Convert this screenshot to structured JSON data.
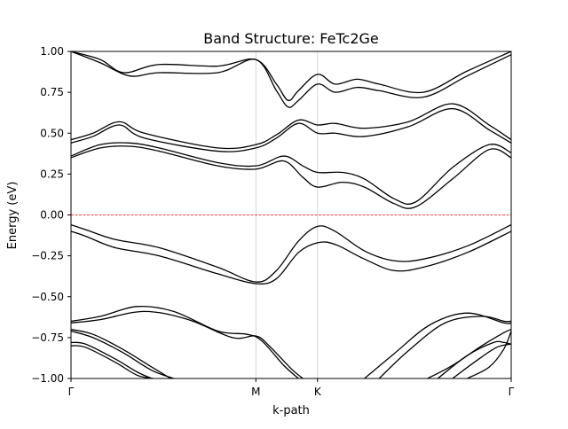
{
  "chart_data": {
    "type": "line",
    "title": "Band Structure: FeTc2Ge",
    "xlabel": "k-path",
    "ylabel": "Energy (eV)",
    "xlim": [
      0,
      3.0
    ],
    "ylim": [
      -1.0,
      1.0
    ],
    "yticks": [
      -1.0,
      -0.75,
      -0.5,
      -0.25,
      0.0,
      0.25,
      0.5,
      0.75,
      1.0
    ],
    "ytick_labels": [
      "−1.00",
      "−0.75",
      "−0.50",
      "−0.25",
      "0.00",
      "0.25",
      "0.50",
      "0.75",
      "1.00"
    ],
    "kpoints": [
      {
        "label": "Γ",
        "x": 0.0
      },
      {
        "label": "M",
        "x": 1.26
      },
      {
        "label": "K",
        "x": 1.68
      },
      {
        "label": "Γ",
        "x": 3.0
      }
    ],
    "fermi_level": 0.0,
    "colors": {
      "bands": "#000000",
      "fermi": "#ff0000",
      "vlines": "#cccccc"
    },
    "series": [
      {
        "x": [
          0,
          0.2,
          0.36,
          0.6,
          1.0,
          1.26,
          1.4,
          1.48,
          1.55,
          1.68,
          1.8,
          1.95,
          2.1,
          2.4,
          2.7,
          3.0
        ],
        "values": [
          1.0,
          0.95,
          0.87,
          0.92,
          0.91,
          0.95,
          0.8,
          0.7,
          0.76,
          0.86,
          0.8,
          0.83,
          0.8,
          0.75,
          0.88,
          1.0
        ]
      },
      {
        "x": [
          0,
          0.2,
          0.4,
          0.6,
          1.0,
          1.26,
          1.4,
          1.48,
          1.55,
          1.68,
          1.8,
          1.95,
          2.1,
          2.4,
          2.7,
          3.0
        ],
        "values": [
          1.0,
          0.93,
          0.85,
          0.87,
          0.87,
          0.95,
          0.76,
          0.66,
          0.7,
          0.8,
          0.75,
          0.78,
          0.76,
          0.72,
          0.85,
          0.98
        ]
      },
      {
        "x": [
          0,
          0.15,
          0.33,
          0.5,
          1.0,
          1.26,
          1.4,
          1.55,
          1.68,
          1.8,
          2.0,
          2.3,
          2.6,
          2.85,
          3.0
        ],
        "values": [
          0.46,
          0.5,
          0.57,
          0.5,
          0.41,
          0.43,
          0.49,
          0.58,
          0.55,
          0.56,
          0.53,
          0.57,
          0.68,
          0.55,
          0.46
        ]
      },
      {
        "x": [
          0,
          0.15,
          0.33,
          0.5,
          1.0,
          1.26,
          1.4,
          1.55,
          1.68,
          1.8,
          2.0,
          2.3,
          2.6,
          2.85,
          3.0
        ],
        "values": [
          0.44,
          0.48,
          0.55,
          0.47,
          0.39,
          0.41,
          0.47,
          0.56,
          0.5,
          0.5,
          0.48,
          0.54,
          0.65,
          0.52,
          0.44
        ]
      },
      {
        "x": [
          0,
          0.2,
          0.4,
          0.6,
          1.0,
          1.26,
          1.45,
          1.58,
          1.68,
          1.85,
          2.0,
          2.2,
          2.35,
          2.6,
          2.85,
          3.0
        ],
        "values": [
          0.36,
          0.43,
          0.44,
          0.41,
          0.32,
          0.3,
          0.36,
          0.3,
          0.26,
          0.26,
          0.22,
          0.1,
          0.08,
          0.29,
          0.43,
          0.38
        ]
      },
      {
        "x": [
          0,
          0.2,
          0.4,
          0.6,
          1.0,
          1.26,
          1.45,
          1.58,
          1.68,
          1.85,
          2.0,
          2.2,
          2.35,
          2.6,
          2.85,
          3.0
        ],
        "values": [
          0.35,
          0.41,
          0.42,
          0.39,
          0.3,
          0.28,
          0.33,
          0.23,
          0.17,
          0.2,
          0.17,
          0.07,
          0.05,
          0.22,
          0.4,
          0.35
        ]
      },
      {
        "x": [
          0,
          0.1,
          0.3,
          0.6,
          1.0,
          1.26,
          1.4,
          1.55,
          1.68,
          1.8,
          2.0,
          2.2,
          2.4,
          2.7,
          3.0
        ],
        "values": [
          -0.06,
          -0.09,
          -0.15,
          -0.2,
          -0.32,
          -0.41,
          -0.34,
          -0.16,
          -0.07,
          -0.1,
          -0.22,
          -0.28,
          -0.27,
          -0.19,
          -0.06
        ]
      },
      {
        "x": [
          0,
          0.1,
          0.3,
          0.6,
          1.0,
          1.26,
          1.4,
          1.55,
          1.68,
          1.8,
          2.0,
          2.2,
          2.4,
          2.7,
          3.0
        ],
        "values": [
          -0.1,
          -0.13,
          -0.2,
          -0.25,
          -0.36,
          -0.42,
          -0.39,
          -0.23,
          -0.17,
          -0.18,
          -0.27,
          -0.34,
          -0.32,
          -0.23,
          -0.1
        ]
      },
      {
        "x": [
          0,
          0.2,
          0.45,
          0.7,
          1.0,
          1.2,
          1.3,
          1.45,
          1.55
        ],
        "values": [
          -0.65,
          -0.62,
          -0.56,
          -0.59,
          -0.71,
          -0.73,
          -0.77,
          -0.92,
          -1.0
        ]
      },
      {
        "x": [
          0,
          0.2,
          0.5,
          0.8,
          1.1,
          1.26,
          1.35,
          1.5,
          1.58
        ],
        "values": [
          -0.66,
          -0.64,
          -0.59,
          -0.64,
          -0.75,
          -0.74,
          -0.8,
          -0.94,
          -1.0
        ]
      },
      {
        "x": [
          0,
          0.15,
          0.35,
          0.55,
          0.68
        ],
        "values": [
          -0.7,
          -0.73,
          -0.82,
          -0.93,
          -1.0
        ]
      },
      {
        "x": [
          0,
          0.15,
          0.35,
          0.55,
          0.7
        ],
        "values": [
          -0.71,
          -0.75,
          -0.84,
          -0.95,
          -1.0
        ]
      },
      {
        "x": [
          0,
          0.1,
          0.3,
          0.45,
          0.55
        ],
        "values": [
          -0.78,
          -0.79,
          -0.88,
          -0.96,
          -1.0
        ]
      },
      {
        "x": [
          0,
          0.1,
          0.3,
          0.45,
          0.56
        ],
        "values": [
          -0.8,
          -0.81,
          -0.9,
          -0.98,
          -1.0
        ]
      },
      {
        "x": [
          2.0,
          2.2,
          2.45,
          2.7,
          2.95,
          3.0
        ],
        "values": [
          -1.0,
          -0.85,
          -0.67,
          -0.6,
          -0.66,
          -0.66
        ]
      },
      {
        "x": [
          2.1,
          2.3,
          2.55,
          2.8,
          2.95,
          3.0
        ],
        "values": [
          -1.0,
          -0.83,
          -0.66,
          -0.62,
          -0.65,
          -0.65
        ]
      },
      {
        "x": [
          2.43,
          2.6,
          2.8,
          2.95,
          3.0
        ],
        "values": [
          -1.0,
          -0.92,
          -0.8,
          -0.72,
          -0.7
        ]
      },
      {
        "x": [
          2.5,
          2.7,
          2.88,
          2.95,
          3.0
        ],
        "values": [
          -1.0,
          -0.86,
          -0.78,
          -0.78,
          -0.79
        ]
      },
      {
        "x": [
          2.6,
          2.75,
          2.9,
          3.0
        ],
        "values": [
          -1.0,
          -0.9,
          -0.81,
          -0.79
        ]
      },
      {
        "x": [
          2.7,
          2.85,
          2.95,
          3.0
        ],
        "values": [
          -1.0,
          -0.93,
          -0.82,
          -0.71
        ]
      }
    ]
  }
}
